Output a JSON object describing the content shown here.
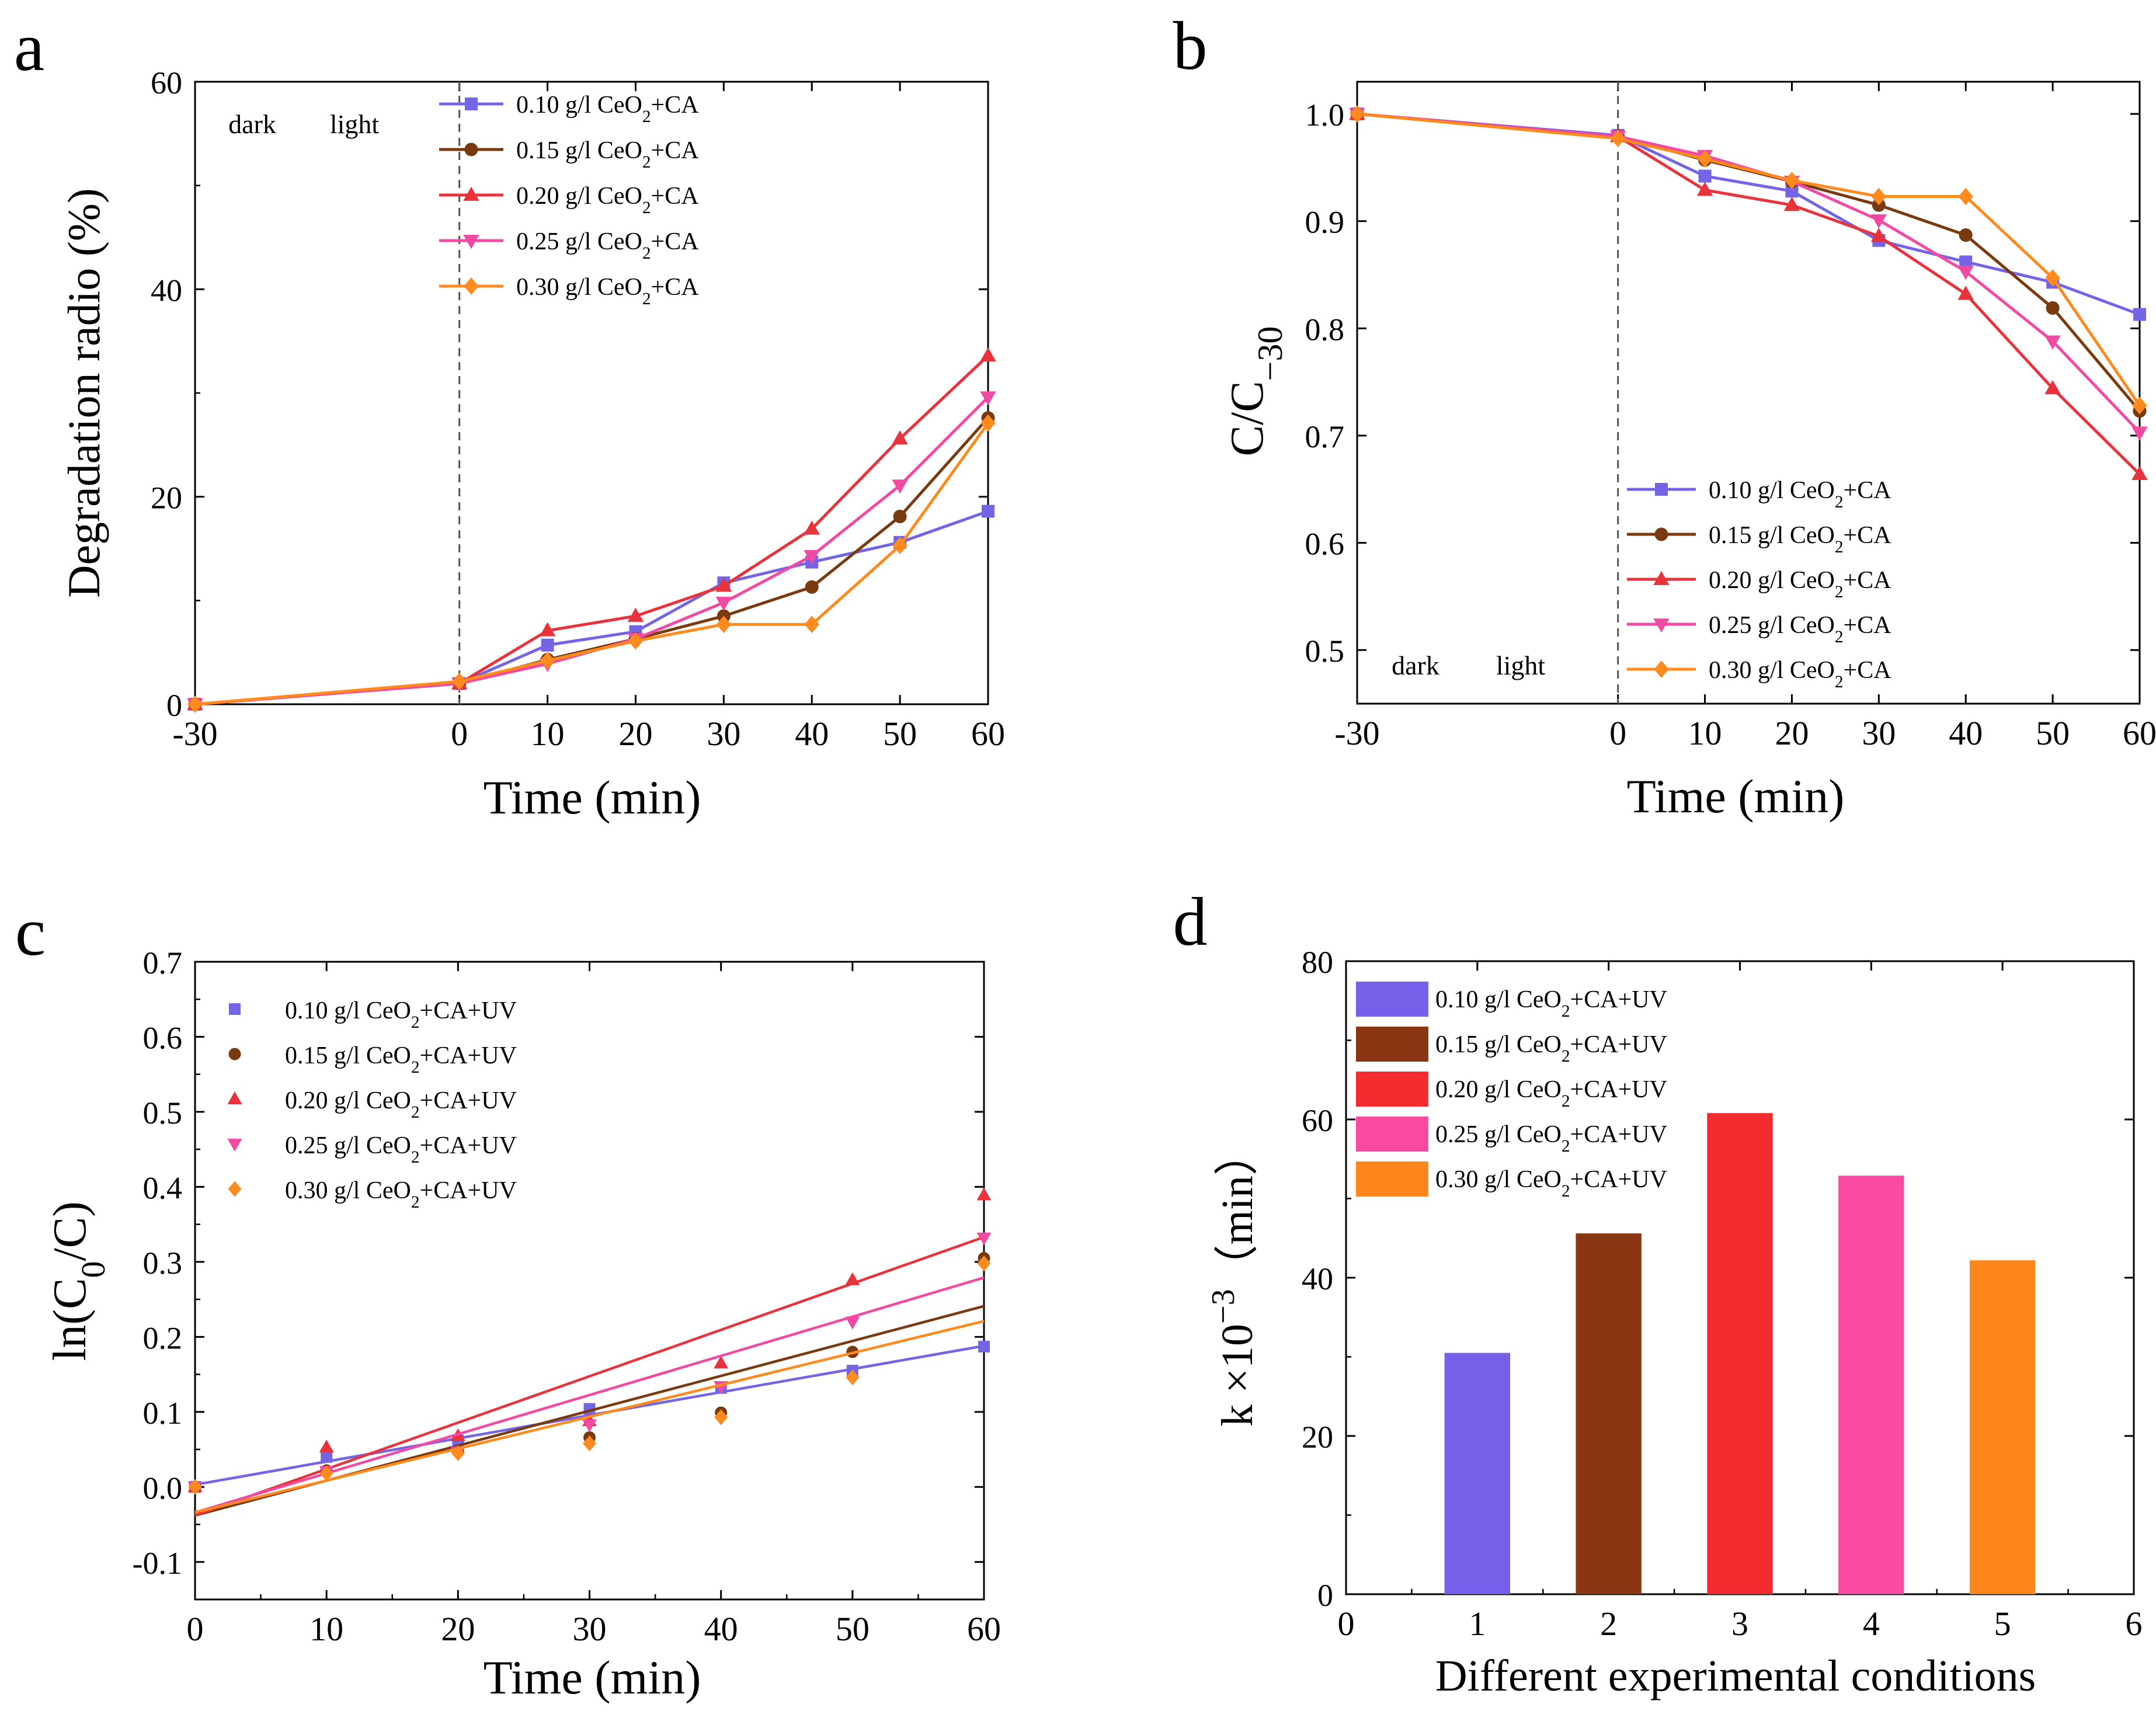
{
  "series_styles": [
    {
      "color": "#7464E6",
      "marker": "square"
    },
    {
      "color": "#7A3A10",
      "marker": "circle"
    },
    {
      "color": "#E8323C",
      "marker": "triangle-up"
    },
    {
      "color": "#F24AA2",
      "marker": "triangle-down"
    },
    {
      "color": "#FF8A1E",
      "marker": "diamond"
    }
  ],
  "chart_data": [
    {
      "panel": "a",
      "type": "line",
      "xlabel": "Time (min)",
      "ylabel": "Degradation radio  (%)",
      "xlim": [
        -30,
        60
      ],
      "ylim": [
        0,
        60
      ],
      "xticks": [
        -30,
        0,
        10,
        20,
        30,
        40,
        50,
        60
      ],
      "yticks": [
        0,
        20,
        40,
        60
      ],
      "dark_label": "dark",
      "light_label": "light",
      "divider_x": 0,
      "legend_position": "top-right",
      "x": [
        -30,
        0,
        10,
        20,
        30,
        40,
        50,
        60
      ],
      "series": [
        {
          "name_prefix": "0.10 g/l CeO",
          "name_sub": "2",
          "name_suffix": "+CA",
          "values": [
            0,
            2.0,
            5.7,
            7.0,
            11.7,
            13.7,
            15.6,
            18.6
          ]
        },
        {
          "name_prefix": "0.15 g/l CeO",
          "name_sub": "2",
          "name_suffix": "+CA",
          "values": [
            0,
            2.0,
            4.3,
            6.3,
            8.5,
            11.3,
            18.1,
            27.6
          ]
        },
        {
          "name_prefix": "0.20 g/l CeO",
          "name_sub": "2",
          "name_suffix": "+CA",
          "values": [
            0,
            2.0,
            7.1,
            8.5,
            11.4,
            16.9,
            25.6,
            33.6
          ]
        },
        {
          "name_prefix": "0.25 g/l CeO",
          "name_sub": "2",
          "name_suffix": "+CA",
          "values": [
            0,
            2.0,
            3.9,
            6.3,
            9.8,
            14.3,
            21.1,
            29.6
          ]
        },
        {
          "name_prefix": "0.30 g/l CeO",
          "name_sub": "2",
          "name_suffix": "+CA",
          "values": [
            0,
            2.2,
            4.2,
            6.1,
            7.7,
            7.7,
            15.3,
            27.1
          ]
        }
      ]
    },
    {
      "panel": "b",
      "type": "line",
      "xlabel": "Time (min)",
      "ylabel_main": "C/C",
      "ylabel_sub": "−30",
      "xlim": [
        -30,
        60
      ],
      "ylim": [
        0.45,
        1.03
      ],
      "xticks": [
        -30,
        0,
        10,
        20,
        30,
        40,
        50,
        60
      ],
      "yticks": [
        0.5,
        0.6,
        0.7,
        0.8,
        0.9,
        1.0
      ],
      "dark_label": "dark",
      "light_label": "light",
      "divider_x": 0,
      "legend_position": "bottom-right",
      "x": [
        -30,
        0,
        10,
        20,
        30,
        40,
        50,
        60
      ],
      "series": [
        {
          "name_prefix": "0.10 g/l  CeO",
          "name_sub": "2",
          "name_suffix": "+CA",
          "values": [
            1.0,
            0.98,
            0.942,
            0.928,
            0.882,
            0.862,
            0.843,
            0.813
          ]
        },
        {
          "name_prefix": "0.15 g/l  CeO",
          "name_sub": "2",
          "name_suffix": "+CA",
          "values": [
            1.0,
            0.979,
            0.957,
            0.937,
            0.915,
            0.887,
            0.819,
            0.723
          ]
        },
        {
          "name_prefix": "0.20 g/l  CeO",
          "name_sub": "2",
          "name_suffix": "+CA",
          "values": [
            1.0,
            0.979,
            0.929,
            0.915,
            0.886,
            0.832,
            0.744,
            0.664
          ]
        },
        {
          "name_prefix": "0.25 g/l  CeO",
          "name_sub": "2",
          "name_suffix": "+CA",
          "values": [
            1.0,
            0.979,
            0.961,
            0.937,
            0.901,
            0.853,
            0.788,
            0.703
          ]
        },
        {
          "name_prefix": "0.30 g/l  CeO",
          "name_sub": "2",
          "name_suffix": "+CA",
          "values": [
            1.0,
            0.977,
            0.958,
            0.938,
            0.923,
            0.923,
            0.847,
            0.728
          ]
        }
      ]
    },
    {
      "panel": "c",
      "type": "scatter",
      "xlabel": "Time (min)",
      "ylabel_pre": "ln(C",
      "ylabel_sub": "0",
      "ylabel_post": "/C)",
      "xlim": [
        0,
        60
      ],
      "ylim": [
        -0.15,
        0.7
      ],
      "xticks": [
        0,
        10,
        20,
        30,
        40,
        50,
        60
      ],
      "yticks": [
        -0.1,
        0.0,
        0.1,
        0.2,
        0.3,
        0.4,
        0.5,
        0.6,
        0.7
      ],
      "legend_position": "top-left",
      "x": [
        0,
        10,
        20,
        30,
        40,
        50,
        60
      ],
      "series": [
        {
          "name_prefix": "0.10 g/l CeO",
          "name_sub": "2",
          "name_suffix": "+CA+UV",
          "values": [
            0,
            0.04,
            0.062,
            0.104,
            0.132,
            0.155,
            0.187
          ],
          "fit": [
            0.003,
            0.188
          ]
        },
        {
          "name_prefix": "0.15 g/l CeO",
          "name_sub": "2",
          "name_suffix": "+CA+UV",
          "values": [
            0,
            0.022,
            0.047,
            0.066,
            0.099,
            0.18,
            0.305
          ],
          "fit": [
            -0.038,
            0.241
          ]
        },
        {
          "name_prefix": "0.20 g/l CeO",
          "name_sub": "2",
          "name_suffix": "+CA+UV",
          "values": [
            0,
            0.053,
            0.068,
            0.088,
            0.165,
            0.276,
            0.389
          ],
          "fit": [
            -0.038,
            0.333
          ]
        },
        {
          "name_prefix": "0.25 g/l CeO",
          "name_sub": "2",
          "name_suffix": "+CA+UV",
          "values": [
            0,
            0.021,
            0.047,
            0.083,
            0.134,
            0.22,
            0.332
          ],
          "fit": [
            -0.034,
            0.279
          ]
        },
        {
          "name_prefix": "0.30 g/l CeO",
          "name_sub": "2",
          "name_suffix": "+CA+UV",
          "values": [
            0,
            0.018,
            0.045,
            0.058,
            0.093,
            0.146,
            0.298
          ],
          "fit": [
            -0.034,
            0.221
          ]
        }
      ]
    },
    {
      "panel": "d",
      "type": "bar",
      "xlabel": "Different experimental conditions",
      "ylabel_pre": "k ×10",
      "ylabel_sup": "−3",
      "ylabel_post": "（min）",
      "xlim": [
        0,
        6
      ],
      "ylim": [
        0,
        80
      ],
      "xticks": [
        0,
        1,
        2,
        3,
        4,
        5,
        6
      ],
      "yticks": [
        0,
        20,
        40,
        60,
        80
      ],
      "legend_position": "top-left",
      "categories": [
        1,
        2,
        3,
        4,
        5
      ],
      "series": [
        {
          "name_prefix": "0.10 g/l  CeO",
          "name_sub": "2",
          "name_suffix": "+CA+UV",
          "value": 30.5,
          "color": "#7660EA"
        },
        {
          "name_prefix": "0.15 g/l  CeO",
          "name_sub": "2",
          "name_suffix": "+CA+UV",
          "value": 45.6,
          "color": "#8B3612"
        },
        {
          "name_prefix": "0.20 g/l  CeO",
          "name_sub": "2",
          "name_suffix": "+CA+UV",
          "value": 60.8,
          "color": "#F42C2F"
        },
        {
          "name_prefix": "0.25 g/l  CeO",
          "name_sub": "2",
          "name_suffix": "+CA+UV",
          "value": 52.9,
          "color": "#FA4BA3"
        },
        {
          "name_prefix": "0.30 g/l  CeO",
          "name_sub": "2",
          "name_suffix": "+CA+UV",
          "value": 42.2,
          "color": "#FF861C"
        }
      ]
    }
  ],
  "panel_labels": [
    "a",
    "b",
    "c",
    "d"
  ]
}
